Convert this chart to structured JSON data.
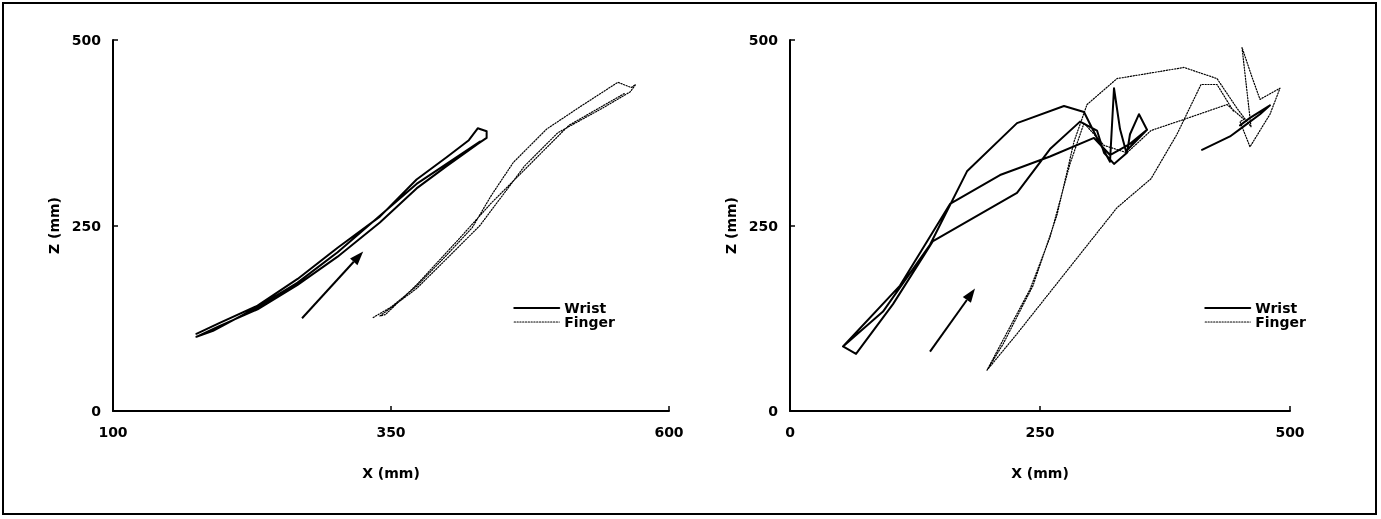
{
  "chart_data": [
    {
      "type": "line",
      "xlabel": "X (mm)",
      "ylabel": "Z (mm)",
      "xlim": [
        100,
        600
      ],
      "xticks": [
        100,
        350,
        600
      ],
      "ylim": [
        0,
        500
      ],
      "yticks": [
        0,
        250,
        500
      ],
      "grid": false,
      "legend": "bottom right",
      "marker": "none",
      "series": [
        {
          "name": "Wrist",
          "color": "#000000",
          "line_style": "solid",
          "x": [
            175,
            195,
            230,
            266,
            302,
            340,
            373,
            400,
            420,
            428,
            436,
            436,
            428,
            400,
            373,
            340,
            302,
            266,
            230,
            195,
            175,
            190,
            230,
            266,
            302,
            373,
            430
          ],
          "values": [
            104,
            118,
            142,
            178,
            220,
            262,
            312,
            342,
            365,
            381,
            377,
            368,
            360,
            330,
            300,
            254,
            208,
            170,
            137,
            114,
            100,
            108,
            140,
            173,
            214,
            306,
            363
          ]
        },
        {
          "name": "Finger",
          "color": "#000000",
          "line_style": "dotted",
          "x": [
            334,
            350,
            373,
            400,
            423,
            440,
            460,
            490,
            520,
            554,
            566,
            570,
            565,
            540,
            500,
            470,
            450,
            430,
            400,
            373,
            340,
            345,
            373,
            410,
            440,
            470,
            510,
            560
          ],
          "values": [
            126,
            140,
            168,
            210,
            247,
            290,
            335,
            380,
            410,
            443,
            436,
            440,
            430,
            408,
            375,
            330,
            290,
            250,
            205,
            165,
            128,
            130,
            170,
            230,
            280,
            325,
            385,
            428
          ]
        }
      ]
    },
    {
      "type": "line",
      "xlabel": "X (mm)",
      "ylabel": "Z (mm)",
      "xlim": [
        0,
        500
      ],
      "xticks": [
        0,
        250,
        500
      ],
      "ylim": [
        0,
        500
      ],
      "yticks": [
        0,
        250,
        500
      ],
      "grid": false,
      "legend": "bottom right",
      "marker": "none",
      "series": [
        {
          "name": "Wrist",
          "color": "#000000",
          "line_style": "solid",
          "x": [
            53,
            93,
            140,
            177,
            227,
            274,
            294,
            307,
            320,
            324,
            330,
            336,
            357,
            340,
            320,
            304,
            260,
            210,
            160,
            110,
            53,
            66,
            103,
            143,
            227,
            260,
            290,
            307,
            314,
            324,
            337,
            340,
            349,
            357
          ],
          "values": [
            87,
            134,
            224,
            323,
            388,
            411,
            403,
            368,
            336,
            435,
            380,
            350,
            379,
            360,
            345,
            368,
            343,
            318,
            279,
            169,
            87,
            77,
            144,
            229,
            294,
            353,
            390,
            378,
            348,
            333,
            348,
            373,
            400,
            379
          ]
        },
        {
          "color": "#000000",
          "line_style": "solid",
          "x": [
            412,
            440,
            455,
            470,
            480,
            460,
            450
          ],
          "values": [
            352,
            370,
            385,
            400,
            412,
            395,
            385
          ]
        },
        {
          "name": "Finger",
          "color": "#000000",
          "line_style": "dotted",
          "x": [
            197,
            213,
            243,
            267,
            284,
            297,
            327,
            394,
            427,
            447,
            461,
            452,
            462,
            470,
            490,
            480,
            460,
            450,
            454,
            437,
            394,
            361,
            337,
            314,
            294,
            280,
            260,
            240,
            197,
            227,
            277,
            327,
            361,
            387,
            411,
            427,
            444
          ],
          "values": [
            55,
            90,
            169,
            264,
            363,
            413,
            448,
            463,
            448,
            408,
            383,
            490,
            450,
            420,
            435,
            400,
            356,
            390,
            393,
            413,
            393,
            378,
            348,
            358,
            388,
            333,
            234,
            164,
            55,
            104,
            189,
            274,
            313,
            373,
            440,
            440,
            403
          ]
        }
      ]
    }
  ]
}
